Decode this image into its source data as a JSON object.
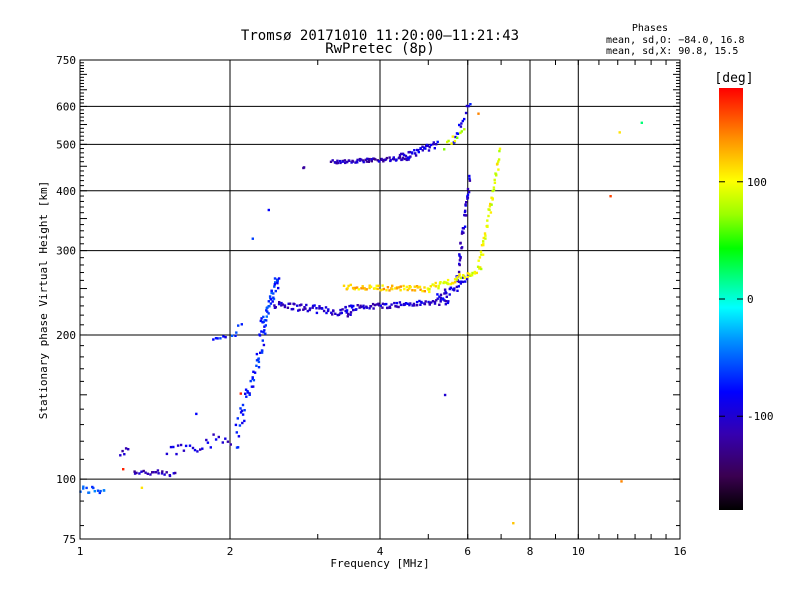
{
  "chart_data": {
    "type": "scatter",
    "title": "Tromsø 20171010 11:20:00–11:21:43",
    "subtitle": "RwPretec (8p)",
    "phases_heading": "Phases",
    "phases_o": "mean, sd,O: −84.0, 16.8",
    "phases_x": "mean, sd,X:  90.8, 15.5",
    "xlabel": "Frequency [MHz]",
    "ylabel": "Stationary phase Virtual Height [km]",
    "x_scale": "log2",
    "y_scale": "log",
    "xlim": [
      1,
      16
    ],
    "ylim": [
      75,
      750
    ],
    "grid": true,
    "x_ticks": [
      {
        "value": 1,
        "label": "1"
      },
      {
        "value": 2,
        "label": "2"
      },
      {
        "value": 4,
        "label": "4"
      },
      {
        "value": 6,
        "label": "6"
      },
      {
        "value": 8,
        "label": "8"
      },
      {
        "value": 10,
        "label": "10"
      },
      {
        "value": 16,
        "label": "16"
      }
    ],
    "y_ticks": [
      {
        "value": 75,
        "label": "75"
      },
      {
        "value": 100,
        "label": "100"
      },
      {
        "value": 200,
        "label": "200"
      },
      {
        "value": 300,
        "label": "300"
      },
      {
        "value": 400,
        "label": "400"
      },
      {
        "value": 500,
        "label": "500"
      },
      {
        "value": 600,
        "label": "600"
      },
      {
        "value": 750,
        "label": "750"
      }
    ],
    "colorbar": {
      "label": "[deg]",
      "range": [
        -180,
        180
      ],
      "ticks": [
        {
          "value": 100,
          "label": "100"
        },
        {
          "value": 0,
          "label": "0"
        },
        {
          "value": -100,
          "label": "-100"
        }
      ]
    },
    "series": [
      {
        "name": "O-mode lower trace",
        "traces": [
          {
            "f0": 1.0,
            "f1": 1.12,
            "h0": 95,
            "h1": 95,
            "phase": -55,
            "n": 14,
            "jitter": 2
          },
          {
            "f0": 1.2,
            "f1": 1.25,
            "h0": 113,
            "h1": 116,
            "phase": -105,
            "n": 5,
            "jitter": 2
          },
          {
            "f0": 1.28,
            "f1": 1.55,
            "h0": 104,
            "h1": 102,
            "phase": -110,
            "n": 22,
            "jitter": 1.5
          },
          {
            "f0": 1.5,
            "f1": 2.0,
            "h0": 115,
            "h1": 122,
            "phase": -100,
            "n": 24,
            "jitter": 4
          },
          {
            "f0": 1.85,
            "f1": 1.95,
            "h0": 196,
            "h1": 199,
            "phase": -75,
            "n": 6,
            "jitter": 2
          },
          {
            "f0": 2.02,
            "f1": 2.1,
            "h0": 200,
            "h1": 209,
            "phase": -70,
            "n": 5,
            "jitter": 3
          },
          {
            "f0": 2.05,
            "f1": 2.35,
            "h0": 122,
            "h1": 200,
            "phase": -75,
            "n": 45,
            "jitter": 10
          },
          {
            "f0": 2.3,
            "f1": 2.5,
            "h0": 205,
            "h1": 262,
            "phase": -65,
            "n": 45,
            "jitter": 10
          },
          {
            "f0": 2.45,
            "f1": 3.5,
            "h0": 232,
            "h1": 222,
            "phase": -105,
            "n": 60,
            "jitter": 4
          },
          {
            "f0": 3.4,
            "f1": 5.5,
            "h0": 228,
            "h1": 235,
            "phase": -100,
            "n": 80,
            "jitter": 3
          },
          {
            "f0": 5.2,
            "f1": 6.0,
            "h0": 238,
            "h1": 262,
            "phase": -95,
            "n": 30,
            "jitter": 6
          },
          {
            "f0": 5.7,
            "f1": 6.05,
            "h0": 262,
            "h1": 420,
            "phase": -100,
            "n": 40,
            "jitter": 12
          }
        ]
      },
      {
        "name": "O-mode upper trace",
        "traces": [
          {
            "f0": 2.8,
            "f1": 2.82,
            "h0": 447,
            "h1": 447,
            "phase": -110,
            "n": 2,
            "jitter": 1
          },
          {
            "f0": 3.2,
            "f1": 4.6,
            "h0": 460,
            "h1": 468,
            "phase": -110,
            "n": 70,
            "jitter": 4
          },
          {
            "f0": 4.4,
            "f1": 5.2,
            "h0": 470,
            "h1": 500,
            "phase": -95,
            "n": 35,
            "jitter": 8
          },
          {
            "f0": 5.6,
            "f1": 6.05,
            "h0": 500,
            "h1": 610,
            "phase": -90,
            "n": 14,
            "jitter": 12
          }
        ]
      },
      {
        "name": "X-mode trace",
        "traces": [
          {
            "f0": 3.4,
            "f1": 5.0,
            "h0": 252,
            "h1": 250,
            "phase": 120,
            "n": 60,
            "jitter": 3
          },
          {
            "f0": 5.0,
            "f1": 6.3,
            "h0": 250,
            "h1": 272,
            "phase": 100,
            "n": 40,
            "jitter": 4
          },
          {
            "f0": 6.3,
            "f1": 6.95,
            "h0": 272,
            "h1": 480,
            "phase": 95,
            "n": 45,
            "jitter": 12
          },
          {
            "f0": 5.4,
            "f1": 5.9,
            "h0": 495,
            "h1": 535,
            "phase": 85,
            "n": 10,
            "jitter": 10
          }
        ]
      },
      {
        "name": "Isolated points",
        "points": [
          {
            "f": 1.33,
            "h": 96,
            "phase": 110
          },
          {
            "f": 1.22,
            "h": 105,
            "phase": 170
          },
          {
            "f": 1.71,
            "h": 137,
            "phase": -80
          },
          {
            "f": 2.22,
            "h": 318,
            "phase": -60
          },
          {
            "f": 2.39,
            "h": 365,
            "phase": -80
          },
          {
            "f": 2.1,
            "h": 151,
            "phase": 170
          },
          {
            "f": 5.4,
            "h": 150,
            "phase": -100
          },
          {
            "f": 6.3,
            "h": 580,
            "phase": 140
          },
          {
            "f": 7.4,
            "h": 81,
            "phase": 120
          },
          {
            "f": 11.6,
            "h": 390,
            "phase": 160
          },
          {
            "f": 12.1,
            "h": 530,
            "phase": 110
          },
          {
            "f": 13.4,
            "h": 555,
            "phase": 20
          },
          {
            "f": 12.2,
            "h": 99,
            "phase": 140
          }
        ]
      }
    ]
  }
}
